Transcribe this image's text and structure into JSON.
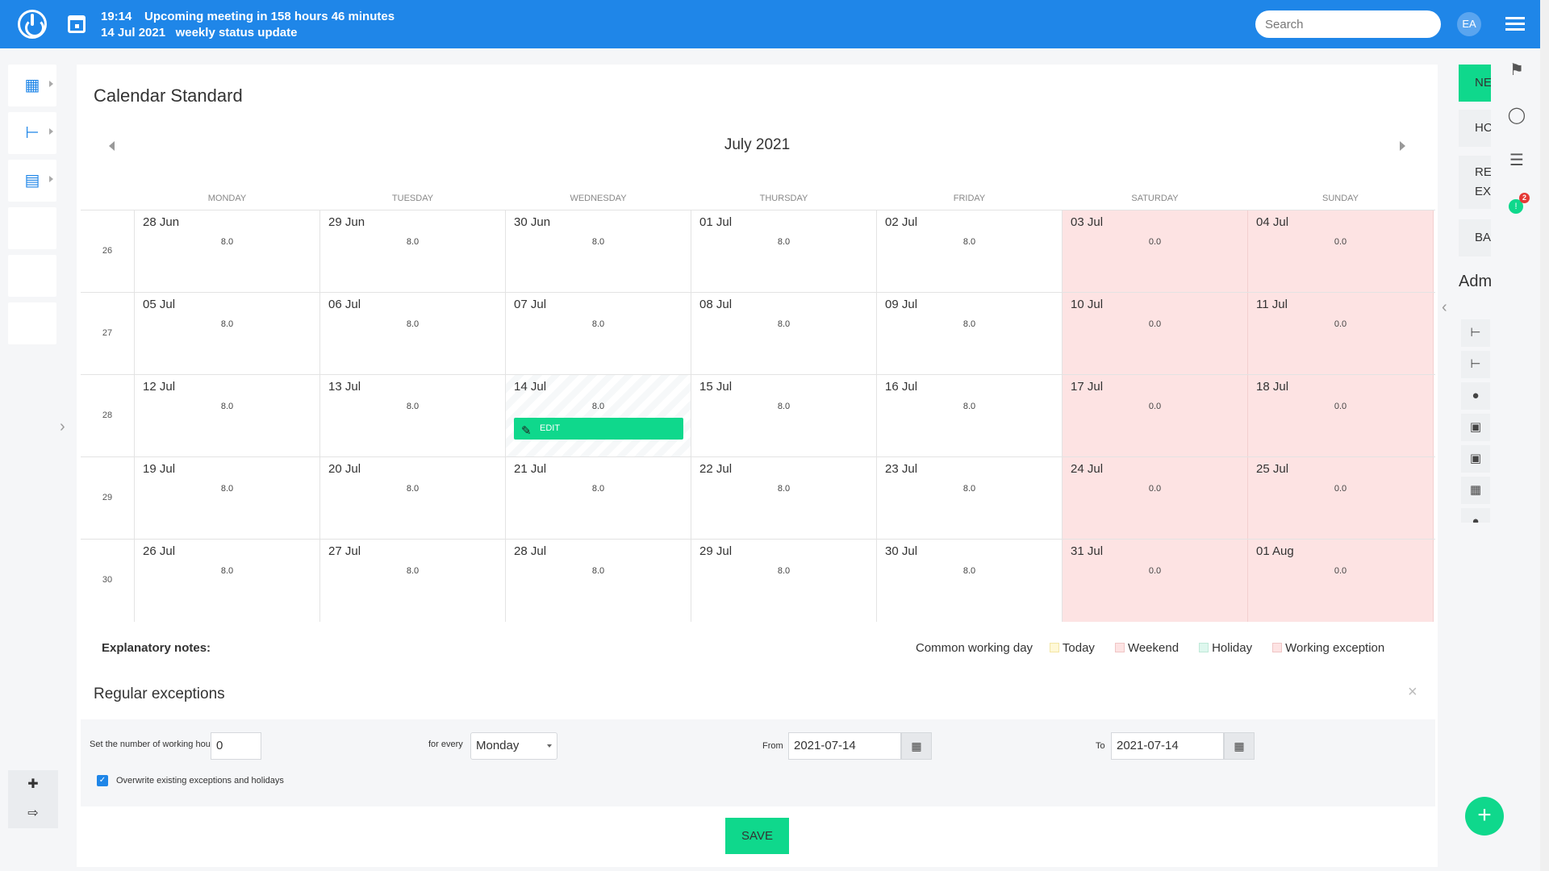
{
  "header": {
    "time": "19:14",
    "meeting": "Upcoming meeting in 158 hours 46 minutes",
    "date": "14 Jul 2021",
    "meeting_name": "weekly status update",
    "search_placeholder": "Search",
    "avatar": "EA"
  },
  "page": {
    "title": "Calendar Standard",
    "month": "July 2021"
  },
  "days": [
    "MONDAY",
    "TUESDAY",
    "WEDNESDAY",
    "THURSDAY",
    "FRIDAY",
    "SATURDAY",
    "SUNDAY"
  ],
  "weeks": [
    {
      "num": "26",
      "days": [
        [
          "28 Jun",
          "8.0"
        ],
        [
          "29 Jun",
          "8.0"
        ],
        [
          "30 Jun",
          "8.0"
        ],
        [
          "01 Jul",
          "8.0"
        ],
        [
          "02 Jul",
          "8.0"
        ],
        [
          "03 Jul",
          "0.0"
        ],
        [
          "04 Jul",
          "0.0"
        ]
      ]
    },
    {
      "num": "27",
      "days": [
        [
          "05 Jul",
          "8.0"
        ],
        [
          "06 Jul",
          "8.0"
        ],
        [
          "07 Jul",
          "8.0"
        ],
        [
          "08 Jul",
          "8.0"
        ],
        [
          "09 Jul",
          "8.0"
        ],
        [
          "10 Jul",
          "0.0"
        ],
        [
          "11 Jul",
          "0.0"
        ]
      ]
    },
    {
      "num": "28",
      "days": [
        [
          "12 Jul",
          "8.0"
        ],
        [
          "13 Jul",
          "8.0"
        ],
        [
          "14 Jul",
          "8.0"
        ],
        [
          "15 Jul",
          "8.0"
        ],
        [
          "16 Jul",
          "8.0"
        ],
        [
          "17 Jul",
          "0.0"
        ],
        [
          "18 Jul",
          "0.0"
        ]
      ]
    },
    {
      "num": "29",
      "days": [
        [
          "19 Jul",
          "8.0"
        ],
        [
          "20 Jul",
          "8.0"
        ],
        [
          "21 Jul",
          "8.0"
        ],
        [
          "22 Jul",
          "8.0"
        ],
        [
          "23 Jul",
          "8.0"
        ],
        [
          "24 Jul",
          "0.0"
        ],
        [
          "25 Jul",
          "0.0"
        ]
      ]
    },
    {
      "num": "30",
      "days": [
        [
          "26 Jul",
          "8.0"
        ],
        [
          "27 Jul",
          "8.0"
        ],
        [
          "28 Jul",
          "8.0"
        ],
        [
          "29 Jul",
          "8.0"
        ],
        [
          "30 Jul",
          "8.0"
        ],
        [
          "31 Jul",
          "0.0"
        ],
        [
          "01 Aug",
          "0.0"
        ]
      ]
    }
  ],
  "edit_label": "EDIT",
  "notes": {
    "label": "Explanatory notes:",
    "common": "Common working day",
    "today": "Today",
    "weekend": "Weekend",
    "holiday": "Holiday",
    "exception": "Working exception"
  },
  "colors": {
    "accent": "#1f86e8",
    "green": "#0fd88c",
    "weekend": "#fde3e3",
    "today": "#fff8d6",
    "holiday": "#def7ee",
    "exception": "#fde3e3"
  },
  "exceptions": {
    "title": "Regular exceptions",
    "hours_label": "Set the number of working hours",
    "hours_value": "0",
    "every_label": "for every",
    "every_value": "Monday",
    "from_label": "From",
    "from_value": "2021-07-14",
    "to_label": "To",
    "to_value": "2021-07-14",
    "overwrite_label": "Overwrite existing exceptions and holidays",
    "save": "SAVE"
  },
  "right": {
    "btn1": "NE",
    "btn2": "HC",
    "btn3a": "RE",
    "btn3b": "EX",
    "btn4": "BA",
    "adm": "Adm",
    "badge": "2"
  }
}
